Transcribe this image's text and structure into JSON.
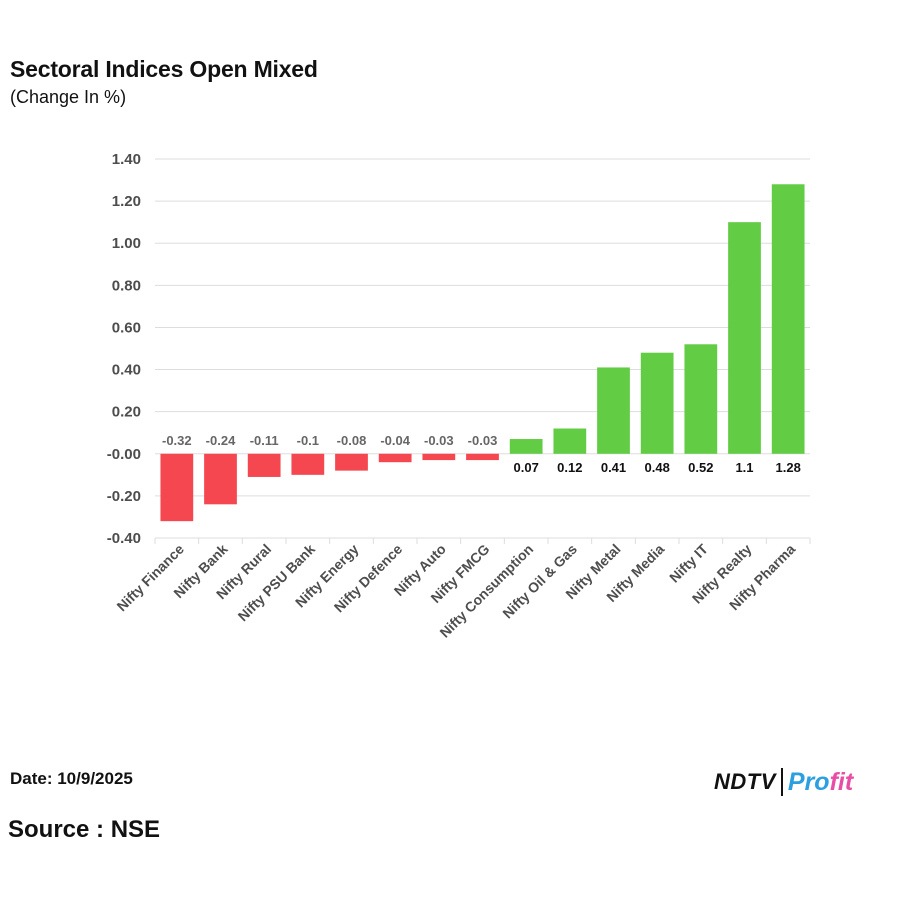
{
  "header": {
    "title": "Sectoral Indices Open Mixed",
    "subtitle": "(Change In %)"
  },
  "footer": {
    "date": "Date: 10/9/2025",
    "source": "Source : NSE"
  },
  "logo": {
    "brand": "NDTV",
    "product_part1": "Pro",
    "product_part2": "fit"
  },
  "colors": {
    "negative": "#f4474f",
    "positive": "#62cc44",
    "grid": "#dddddd"
  },
  "chart_data": {
    "type": "bar",
    "title": "Sectoral Indices Open Mixed",
    "subtitle": "(Change In %)",
    "xlabel": "",
    "ylabel": "",
    "ylim": [
      -0.4,
      1.4
    ],
    "yticks": [
      1.4,
      1.2,
      1.0,
      0.8,
      0.6,
      0.4,
      0.2,
      0.0,
      -0.2,
      -0.4
    ],
    "ytick_labels": [
      "1.40",
      "1.20",
      "1.00",
      "0.80",
      "0.60",
      "0.40",
      "0.20",
      "-0.00",
      "-0.20",
      "-0.40"
    ],
    "grid": true,
    "legend": "none",
    "categories": [
      "Nifty Finance",
      "Nifty Bank",
      "Nifty Rural",
      "Nifty PSU Bank",
      "Nifty Energy",
      "Nifty Defence",
      "Nifty Auto",
      "Nifty FMCG",
      "Nifty Consumption",
      "Nifty Oil & Gas",
      "Nifty Metal",
      "Nifty Media",
      "Nifty IT",
      "Nifty Realty",
      "Nifty Pharma"
    ],
    "values": [
      -0.32,
      -0.24,
      -0.11,
      -0.1,
      -0.08,
      -0.04,
      -0.03,
      -0.03,
      0.07,
      0.12,
      0.41,
      0.48,
      0.52,
      1.1,
      1.28
    ],
    "value_labels": [
      "-0.32",
      "-0.24",
      "-0.11",
      "-0.1",
      "-0.08",
      "-0.04",
      "-0.03",
      "-0.03",
      "0.07",
      "0.12",
      "0.41",
      "0.48",
      "0.52",
      "1.1",
      "1.28"
    ]
  }
}
